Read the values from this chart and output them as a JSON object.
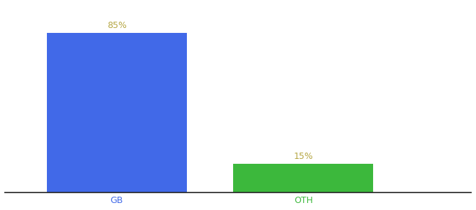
{
  "categories": [
    "GB",
    "OTH"
  ],
  "values": [
    85,
    15
  ],
  "bar_colors": [
    "#4169E8",
    "#3CB83C"
  ],
  "labels": [
    "85%",
    "15%"
  ],
  "ylim": [
    0,
    100
  ],
  "background_color": "#ffffff",
  "label_color": "#b5a642",
  "x_positions": [
    1,
    2
  ],
  "bar_width": 0.75,
  "tick_colors": [
    "#4169E8",
    "#3CB83C"
  ],
  "label_fontsize": 9,
  "tick_fontsize": 9
}
